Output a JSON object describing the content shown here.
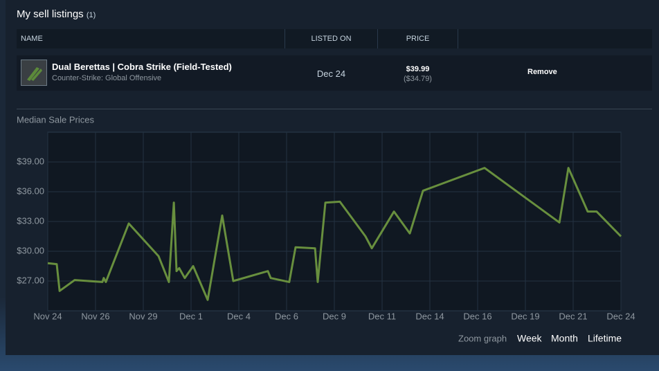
{
  "listings": {
    "title": "My sell listings",
    "count": "(1)",
    "headers": [
      "NAME",
      "LISTED ON",
      "PRICE"
    ],
    "rows": [
      {
        "item": "Dual Berettas | Cobra Strike (Field-Tested)",
        "game": "Counter-Strike: Global Offensive",
        "listed_on": "Dec 24",
        "price": "$39.99",
        "price_net": "($34.79)",
        "action": "Remove"
      }
    ]
  },
  "chart_data": {
    "type": "line",
    "title": "Median Sale Prices",
    "color": "#688f3e",
    "grid": true,
    "x": [
      0,
      0.47,
      0.62,
      1.41,
      2.86,
      2.93,
      3.04,
      4.24,
      5.8,
      6.34,
      6.6,
      6.74,
      6.88,
      7.17,
      7.61,
      8.37,
      9.13,
      9.71,
      11.52,
      11.67,
      12.64,
      12.97,
      13.99,
      14.13,
      14.53,
      15.29,
      16.63,
      16.96,
      18.12,
      18.95,
      19.64,
      22.86,
      26.78,
      27.25,
      28.26,
      28.73,
      30
    ],
    "values": [
      28.8,
      28.7,
      26.0,
      27.1,
      26.9,
      27.3,
      26.9,
      32.8,
      29.5,
      26.9,
      34.9,
      28.0,
      28.3,
      27.3,
      28.5,
      25.1,
      33.6,
      27.0,
      28.0,
      27.3,
      26.9,
      30.4,
      30.3,
      26.9,
      34.9,
      35.0,
      31.5,
      30.3,
      34.0,
      31.8,
      36.1,
      38.4,
      32.9,
      38.4,
      34.0,
      34.0,
      31.5
    ],
    "xlim": [
      0,
      30
    ],
    "xticks": [
      {
        "value": 0,
        "label": "Nov 24"
      },
      {
        "value": 2.5,
        "label": "Nov 26"
      },
      {
        "value": 5,
        "label": "Nov 29"
      },
      {
        "value": 7.5,
        "label": "Dec 1"
      },
      {
        "value": 10,
        "label": "Dec 4"
      },
      {
        "value": 12.5,
        "label": "Dec 6"
      },
      {
        "value": 15,
        "label": "Dec 9"
      },
      {
        "value": 17.5,
        "label": "Dec 11"
      },
      {
        "value": 20,
        "label": "Dec 14"
      },
      {
        "value": 22.5,
        "label": "Dec 16"
      },
      {
        "value": 25,
        "label": "Dec 19"
      },
      {
        "value": 27.5,
        "label": "Dec 21"
      },
      {
        "value": 30,
        "label": "Dec 24"
      }
    ],
    "ylim": [
      24,
      42
    ],
    "yticks": [
      {
        "value": 27,
        "label": "$27.00"
      },
      {
        "value": 30,
        "label": "$30.00"
      },
      {
        "value": 33,
        "label": "$33.00"
      },
      {
        "value": 36,
        "label": "$36.00"
      },
      {
        "value": 39,
        "label": "$39.00"
      }
    ]
  },
  "zoom": {
    "label": "Zoom graph",
    "options": [
      "Week",
      "Month",
      "Lifetime"
    ]
  }
}
